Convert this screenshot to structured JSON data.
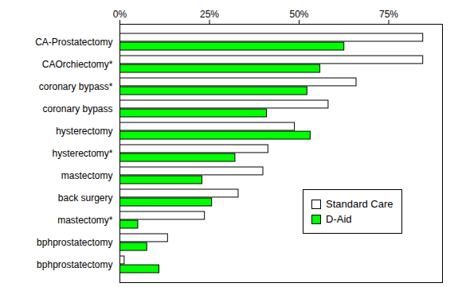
{
  "chart_data": {
    "type": "bar",
    "orientation": "horizontal",
    "categories": [
      "CA-Prostatectomy",
      "CAOrchiectomy*",
      "coronary bypass*",
      "coronary bypass",
      "hysterectomy",
      "hysterectomy*",
      "mastectomy",
      "back surgery",
      "mastectomy*",
      "bphprostatectomy",
      "bphprostatectomy"
    ],
    "series": [
      {
        "name": "Standard Care",
        "color": "#ffffff",
        "values": [
          84.6,
          84.6,
          66,
          58.2,
          48.8,
          41.4,
          40,
          33.1,
          23.7,
          13.4,
          1.3
        ]
      },
      {
        "name": "D-Aid",
        "color": "#00ff00",
        "values": [
          62.6,
          55.9,
          52.3,
          41,
          53.2,
          32.2,
          23,
          25.7,
          5.1,
          7.6,
          11
        ]
      }
    ],
    "xlim": [
      0,
      90
    ],
    "xticks": [
      {
        "value": 0,
        "label": "0%"
      },
      {
        "value": 25,
        "label": "25%"
      },
      {
        "value": 50,
        "label": "50%"
      },
      {
        "value": 75,
        "label": "75%"
      }
    ],
    "grid": false,
    "legend": "lower right"
  }
}
